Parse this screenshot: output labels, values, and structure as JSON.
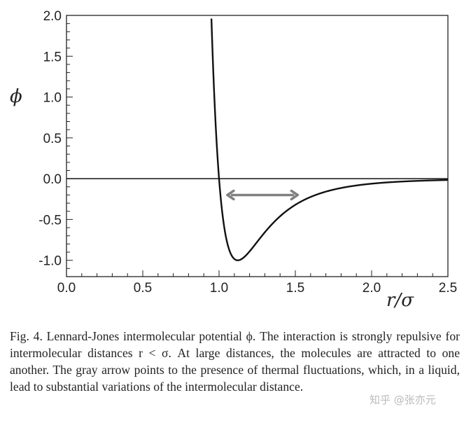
{
  "chart_data": {
    "type": "line",
    "xlabel": "r/σ",
    "ylabel": "ϕ",
    "xlim": [
      0.0,
      2.5
    ],
    "ylim": [
      -1.2,
      2.0
    ],
    "xticks": [
      "0.0",
      "0.5",
      "1.0",
      "1.5",
      "2.0",
      "2.5"
    ],
    "yticks": [
      "2.0",
      "1.5",
      "1.0",
      "0.5",
      "0.0",
      "-0.5",
      "-1.0"
    ],
    "grid": false,
    "series": [
      {
        "function": "4*((1/x)^12-(1/x)^6)",
        "x_range": [
          0.95,
          2.5
        ],
        "color": "#111111"
      }
    ],
    "reference_line": {
      "y": 0.0
    },
    "annotations": [
      {
        "type": "double-arrow",
        "x": [
          1.05,
          1.52
        ],
        "y": -0.2,
        "color": "#808080"
      }
    ]
  },
  "caption": "Fig. 4.  Lennard-Jones intermolecular potential ϕ. The interaction is strongly repulsive for intermolecular distances r < σ. At large distances, the molecules are attracted to one another. The gray arrow points to the presence of thermal fluctuations, which, in a liquid, lead to substantial variations of the intermolecular distance.",
  "watermark": "知乎 @张亦元"
}
